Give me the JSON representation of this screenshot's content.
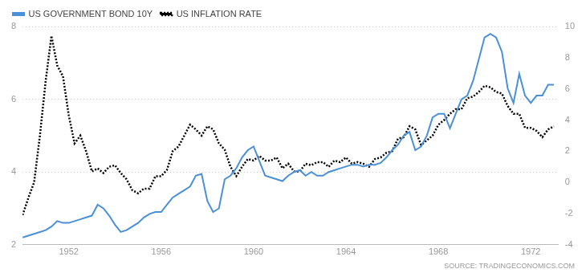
{
  "chart_data": {
    "type": "line",
    "source": "SOURCE: TRADINGECONOMICS.COM",
    "x": [
      1950.0,
      1950.25,
      1950.5,
      1950.75,
      1951.0,
      1951.25,
      1951.5,
      1951.75,
      1952.0,
      1952.25,
      1952.5,
      1952.75,
      1953.0,
      1953.25,
      1953.5,
      1953.75,
      1954.0,
      1954.25,
      1954.5,
      1954.75,
      1955.0,
      1955.25,
      1955.5,
      1955.75,
      1956.0,
      1956.25,
      1956.5,
      1956.75,
      1957.0,
      1957.25,
      1957.5,
      1957.75,
      1958.0,
      1958.25,
      1958.5,
      1958.75,
      1959.0,
      1959.25,
      1959.5,
      1959.75,
      1960.0,
      1960.25,
      1960.5,
      1960.75,
      1961.0,
      1961.25,
      1961.5,
      1961.75,
      1962.0,
      1962.25,
      1962.5,
      1962.75,
      1963.0,
      1963.25,
      1963.5,
      1963.75,
      1964.0,
      1964.25,
      1964.5,
      1964.75,
      1965.0,
      1965.25,
      1965.5,
      1965.75,
      1966.0,
      1966.25,
      1966.5,
      1966.75,
      1967.0,
      1967.25,
      1967.5,
      1967.75,
      1968.0,
      1968.25,
      1968.5,
      1968.75,
      1969.0,
      1969.25,
      1969.5,
      1969.75,
      1970.0,
      1970.25,
      1970.5,
      1970.75,
      1971.0,
      1971.25,
      1971.5,
      1971.75,
      1972.0,
      1972.25,
      1972.5,
      1972.75,
      1973.0
    ],
    "series": [
      {
        "name": "US GOVERNMENT BOND 10Y",
        "color": "#4a90d9",
        "line_style": "solid",
        "values": [
          2.2,
          2.25,
          2.3,
          2.35,
          2.4,
          2.5,
          2.65,
          2.6,
          2.6,
          2.65,
          2.7,
          2.75,
          2.8,
          3.1,
          3.0,
          2.8,
          2.55,
          2.35,
          2.4,
          2.5,
          2.6,
          2.75,
          2.85,
          2.9,
          2.9,
          3.1,
          3.3,
          3.4,
          3.5,
          3.6,
          3.9,
          3.95,
          3.2,
          2.9,
          3.0,
          3.8,
          3.9,
          4.1,
          4.4,
          4.6,
          4.7,
          4.3,
          3.9,
          3.85,
          3.8,
          3.75,
          3.9,
          4.0,
          4.05,
          3.9,
          4.0,
          3.9,
          3.9,
          4.0,
          4.05,
          4.1,
          4.15,
          4.2,
          4.2,
          4.15,
          4.2,
          4.2,
          4.25,
          4.4,
          4.6,
          4.75,
          5.0,
          5.1,
          4.6,
          4.7,
          5.0,
          5.5,
          5.6,
          5.6,
          5.2,
          5.6,
          6.0,
          6.1,
          6.5,
          7.1,
          7.7,
          7.8,
          7.7,
          7.3,
          6.3,
          5.9,
          6.7,
          6.1,
          5.9,
          6.1,
          6.1,
          6.4,
          6.4
        ]
      },
      {
        "name": "US INFLATION RATE",
        "color": "#000000",
        "line_style": "dotted",
        "axis": "y2",
        "values": [
          -2.1,
          -1.0,
          0.0,
          3.0,
          6.5,
          9.4,
          7.5,
          6.8,
          4.3,
          2.5,
          3.0,
          2.0,
          0.7,
          0.9,
          0.6,
          1.0,
          1.1,
          0.6,
          0.2,
          -0.5,
          -0.7,
          -0.4,
          -0.4,
          0.4,
          0.4,
          0.8,
          2.0,
          2.3,
          3.0,
          3.7,
          3.4,
          3.0,
          3.6,
          3.4,
          2.5,
          2.1,
          1.0,
          0.4,
          1.0,
          1.5,
          1.4,
          1.7,
          1.4,
          1.4,
          1.6,
          0.9,
          1.2,
          0.7,
          0.7,
          1.2,
          1.1,
          1.3,
          1.3,
          1.0,
          1.4,
          1.3,
          1.6,
          1.2,
          1.3,
          1.2,
          1.0,
          1.5,
          1.6,
          1.9,
          2.0,
          2.8,
          2.9,
          3.6,
          3.4,
          2.4,
          2.7,
          3.0,
          3.7,
          4.0,
          4.4,
          4.7,
          4.7,
          5.4,
          5.5,
          5.8,
          6.2,
          6.1,
          5.8,
          5.7,
          4.9,
          4.4,
          4.4,
          3.5,
          3.5,
          3.3,
          2.9,
          3.4,
          3.6
        ]
      }
    ],
    "xlim": [
      1950.0,
      1973.2
    ],
    "xticks": [
      1952,
      1956,
      1960,
      1964,
      1968,
      1972
    ],
    "ylim": [
      2,
      8
    ],
    "yticks": [
      2,
      4,
      6,
      8
    ],
    "y2lim": [
      -4,
      10
    ],
    "y2ticks": [
      -4,
      -2,
      0,
      2,
      4,
      6,
      8,
      10
    ],
    "grid": true,
    "legend": "top-left"
  }
}
